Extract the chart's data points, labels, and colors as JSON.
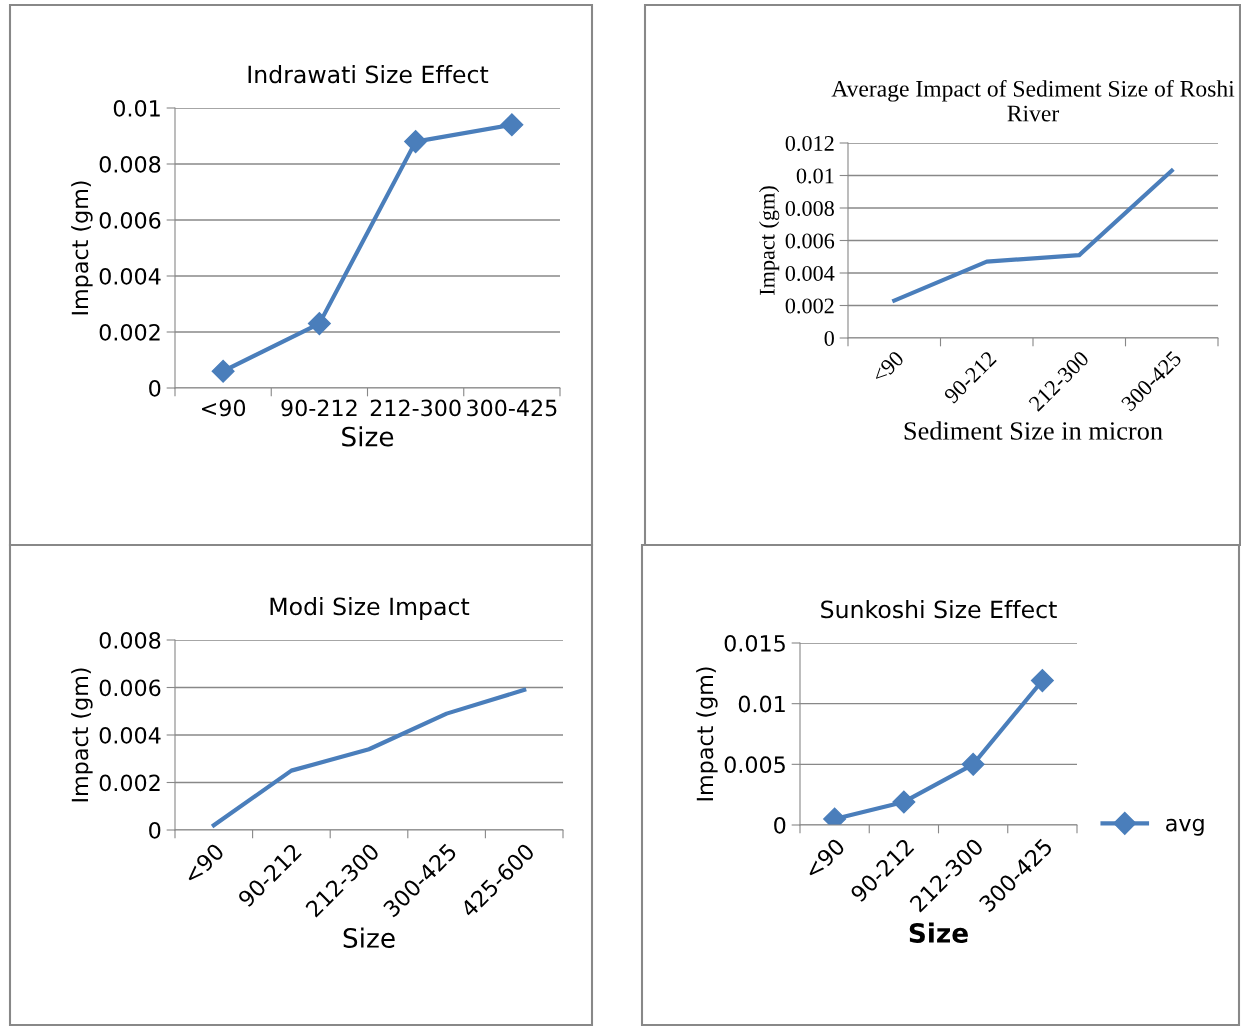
{
  "chart_data": [
    {
      "type": "line",
      "title": "Indrawati Size Effect",
      "xlabel": "Size",
      "ylabel": "Impact (gm)",
      "categories": [
        "<90",
        "90-212",
        "212-300",
        "300-425"
      ],
      "series": [
        {
          "color": "#4a7ebb",
          "values": [
            0.0006,
            0.0023,
            0.0088,
            0.0094
          ]
        }
      ],
      "ylim": [
        0,
        0.01
      ],
      "yticks": [
        0,
        0.002,
        0.004,
        0.006,
        0.008,
        0.01
      ],
      "grid": "y",
      "marker": "diamond",
      "line_style": "solid",
      "legend": false
    },
    {
      "type": "line",
      "title": "Average Impact of Sediment Size of Roshi River",
      "xlabel": "Sediment Size in micron",
      "ylabel": "Impact (gm)",
      "categories": [
        "<90",
        "90-212",
        "212-300",
        "300-425"
      ],
      "series": [
        {
          "color": "#4a7ebb",
          "values": [
            0.0023,
            0.0047,
            0.0051,
            0.0103
          ]
        }
      ],
      "ylim": [
        0,
        0.012
      ],
      "yticks": [
        0,
        0.002,
        0.004,
        0.006,
        0.008,
        0.01,
        0.012
      ],
      "grid": "y",
      "marker": "none",
      "line_style": "solid",
      "legend": false
    },
    {
      "type": "line",
      "title": "Modi Size Impact",
      "xlabel": "Size",
      "ylabel": "Impact (gm)",
      "categories": [
        "<90",
        "90-212",
        "212-300",
        "300-425",
        "425-600"
      ],
      "series": [
        {
          "color": "#4a7ebb",
          "values": [
            0.0002,
            0.0025,
            0.0034,
            0.0049,
            0.0059
          ]
        }
      ],
      "ylim": [
        0,
        0.008
      ],
      "yticks": [
        0,
        0.002,
        0.004,
        0.006,
        0.008
      ],
      "grid": "y",
      "marker": "none",
      "line_style": "solid",
      "legend": false
    },
    {
      "type": "line",
      "title": "Sunkoshi Size Effect",
      "xlabel": "Size",
      "ylabel": "Impact (gm)",
      "categories": [
        "<90",
        "90-212",
        "212-300",
        "300-425"
      ],
      "series": [
        {
          "name": "avg",
          "color": "#4a7ebb",
          "values": [
            0.0005,
            0.0019,
            0.005,
            0.0119
          ]
        }
      ],
      "ylim": [
        0,
        0.015
      ],
      "yticks": [
        0,
        0.005,
        0.01,
        0.015
      ],
      "grid": "y",
      "marker": "diamond",
      "line_style": "solid",
      "legend": "right"
    }
  ]
}
